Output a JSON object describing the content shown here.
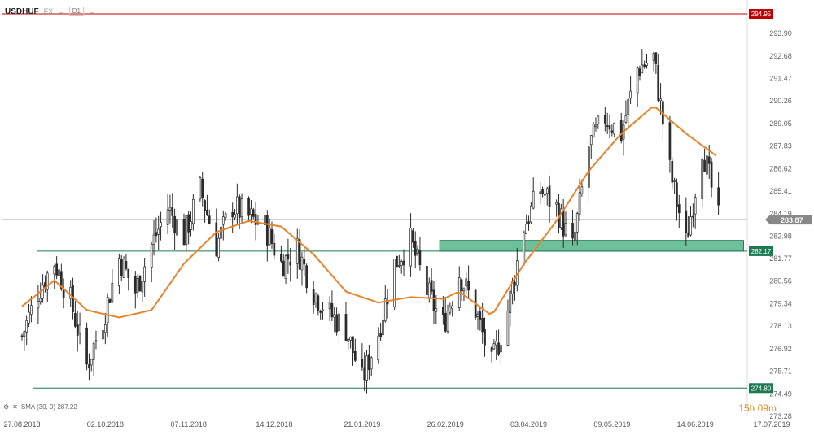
{
  "header": {
    "symbol": "USDHUF",
    "market": "FX",
    "timeframe": "D1"
  },
  "indicator_label": "SMA (30, 0) 287.22",
  "timer": "15h 09m",
  "colors": {
    "bull": "#ffffff",
    "bear": "#2b2b2b",
    "wick": "#2b2b2b",
    "sma": "#e8832a",
    "resistance": "#c00000",
    "support": "#1b7a52",
    "zone": "#3daa78",
    "price_line": "#888888",
    "price_tag": "#888888"
  },
  "chart_data": {
    "type": "candlestick",
    "symbol": "USDHUF",
    "timeframe": "D1",
    "y_ticks": [
      "293.90",
      "292.68",
      "291.47",
      "290.26",
      "289.05",
      "287.83",
      "286.62",
      "285.41",
      "284.19",
      "282.98",
      "281.77",
      "280.56",
      "279.34",
      "278.13",
      "276.92",
      "275.71",
      "274.49",
      "273.28"
    ],
    "x_ticks": [
      "27.08.2018",
      "02.10.2018",
      "07.11.2018",
      "14.12.2018",
      "21.01.2019",
      "26.02.2019",
      "03.04.2019",
      "09.05.2019",
      "14.06.2019",
      "17.07.2019"
    ],
    "ylim": [
      273.28,
      295.5
    ],
    "horizontal_levels": [
      {
        "value": 294.95,
        "label": "294.95",
        "style": "resistance"
      },
      {
        "value": 282.17,
        "label": "282.17",
        "style": "support"
      },
      {
        "value": 274.8,
        "label": "274.80",
        "style": "support"
      },
      {
        "value": 283.87,
        "label": "283.87",
        "style": "price"
      }
    ],
    "zone": {
      "from": 282.17,
      "to": 282.75,
      "start_date": "26.02.2019",
      "end_date": "25.06.2019"
    },
    "sma_period": 30,
    "sma_value": 287.22,
    "close_path": [
      [
        "2018-08-27",
        277.6
      ],
      [
        "2018-09-03",
        280.0
      ],
      [
        "2018-09-10",
        281.6
      ],
      [
        "2018-09-17",
        279.5
      ],
      [
        "2018-09-24",
        276.0
      ],
      [
        "2018-10-01",
        278.5
      ],
      [
        "2018-10-08",
        281.8
      ],
      [
        "2018-10-15",
        280.0
      ],
      [
        "2018-10-22",
        282.5
      ],
      [
        "2018-10-29",
        284.5
      ],
      [
        "2018-11-05",
        283.0
      ],
      [
        "2018-11-12",
        285.5
      ],
      [
        "2018-11-19",
        282.5
      ],
      [
        "2018-11-26",
        284.6
      ],
      [
        "2018-12-03",
        284.0
      ],
      [
        "2018-12-10",
        283.5
      ],
      [
        "2018-12-17",
        281.5
      ],
      [
        "2018-12-24",
        282.3
      ],
      [
        "2018-12-31",
        280.0
      ],
      [
        "2019-01-07",
        278.8
      ],
      [
        "2019-01-14",
        278.0
      ],
      [
        "2019-01-21",
        275.2
      ],
      [
        "2019-01-28",
        277.8
      ],
      [
        "2019-02-04",
        281.5
      ],
      [
        "2019-02-11",
        282.7
      ],
      [
        "2019-02-18",
        280.0
      ],
      [
        "2019-02-25",
        278.2
      ],
      [
        "2019-03-04",
        281.0
      ],
      [
        "2019-03-11",
        279.0
      ],
      [
        "2019-03-18",
        276.0
      ],
      [
        "2019-03-25",
        279.0
      ],
      [
        "2019-04-01",
        283.5
      ],
      [
        "2019-04-08",
        285.5
      ],
      [
        "2019-04-15",
        284.5
      ],
      [
        "2019-04-22",
        282.3
      ],
      [
        "2019-04-29",
        287.8
      ],
      [
        "2019-05-06",
        289.4
      ],
      [
        "2019-05-13",
        288.5
      ],
      [
        "2019-05-20",
        292.0
      ],
      [
        "2019-05-27",
        292.6
      ],
      [
        "2019-06-03",
        286.5
      ],
      [
        "2019-06-10",
        282.6
      ],
      [
        "2019-06-17",
        287.8
      ],
      [
        "2019-06-24",
        283.87
      ]
    ],
    "sma_path": [
      [
        "2018-08-27",
        279.2
      ],
      [
        "2018-09-10",
        280.6
      ],
      [
        "2018-09-24",
        279.0
      ],
      [
        "2018-10-08",
        278.6
      ],
      [
        "2018-10-22",
        279.0
      ],
      [
        "2018-11-05",
        281.5
      ],
      [
        "2018-11-19",
        283.2
      ],
      [
        "2018-12-03",
        283.8
      ],
      [
        "2018-12-17",
        283.5
      ],
      [
        "2018-12-31",
        282.0
      ],
      [
        "2019-01-14",
        280.0
      ],
      [
        "2019-01-28",
        279.4
      ],
      [
        "2019-02-11",
        279.7
      ],
      [
        "2019-02-25",
        279.6
      ],
      [
        "2019-03-04",
        280.0
      ],
      [
        "2019-03-18",
        278.7
      ],
      [
        "2019-04-01",
        281.5
      ],
      [
        "2019-04-15",
        283.8
      ],
      [
        "2019-04-29",
        286.5
      ],
      [
        "2019-05-13",
        288.5
      ],
      [
        "2019-05-27",
        290.0
      ],
      [
        "2019-06-10",
        288.5
      ],
      [
        "2019-06-24",
        287.22
      ]
    ]
  }
}
